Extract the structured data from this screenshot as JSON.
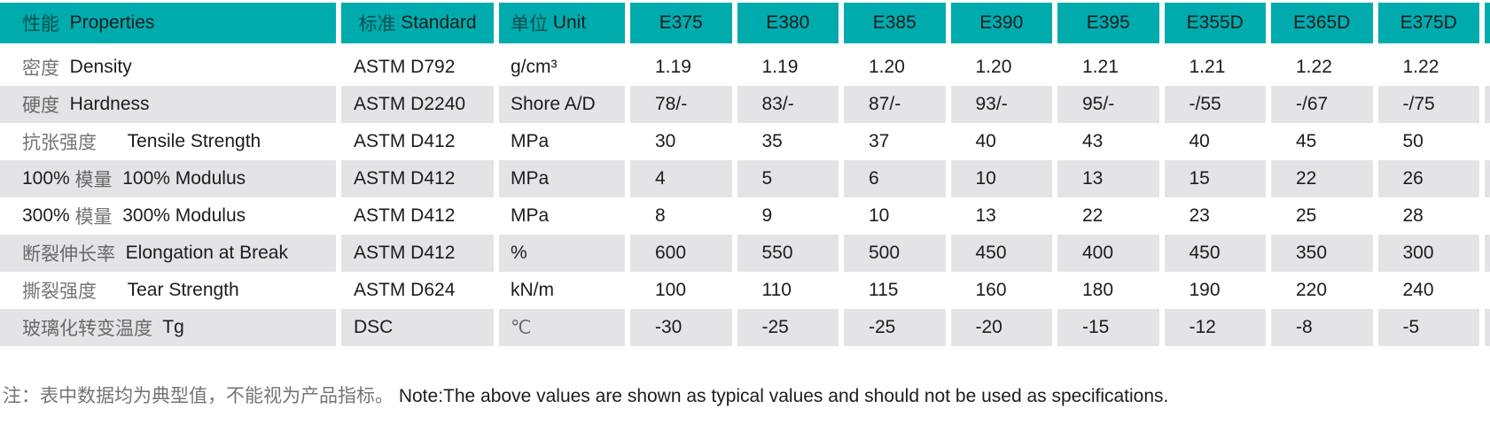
{
  "table": {
    "header": {
      "properties": "性能  Properties",
      "standard": "标准 Standard",
      "unit": "单位 Unit",
      "grades": [
        "E375",
        "E380",
        "E385",
        "E390",
        "E395",
        "E355D",
        "E365D",
        "E375D"
      ]
    },
    "rows": [
      {
        "property": "密度  Density",
        "standard": "ASTM D792",
        "unit": "g/cm³",
        "values": [
          "1.19",
          "1.19",
          "1.20",
          "1.20",
          "1.21",
          "1.21",
          "1.22",
          "1.22"
        ]
      },
      {
        "property": "硬度  Hardness",
        "standard": "ASTM D2240",
        "unit": "Shore A/D",
        "values": [
          "78/-",
          "83/-",
          "87/-",
          "93/-",
          "95/-",
          "-/55",
          "-/67",
          "-/75"
        ]
      },
      {
        "property": "抗张强度      Tensile Strength",
        "standard": "ASTM D412",
        "unit": "MPa",
        "values": [
          "30",
          "35",
          "37",
          "40",
          "43",
          "40",
          "45",
          "50"
        ]
      },
      {
        "property": "100% 模量  100% Modulus",
        "standard": "ASTM D412",
        "unit": "MPa",
        "values": [
          "4",
          "5",
          "6",
          "10",
          "13",
          "15",
          "22",
          "26"
        ]
      },
      {
        "property": "300% 模量  300% Modulus",
        "standard": "ASTM D412",
        "unit": "MPa",
        "values": [
          "8",
          "9",
          "10",
          "13",
          "22",
          "23",
          "25",
          "28"
        ]
      },
      {
        "property": "断裂伸长率  Elongation at Break",
        "standard": "ASTM D412",
        "unit": "%",
        "values": [
          "600",
          "550",
          "500",
          "450",
          "400",
          "450",
          "350",
          "300"
        ]
      },
      {
        "property": "撕裂强度      Tear Strength",
        "standard": "ASTM D624",
        "unit": "kN/m",
        "values": [
          "100",
          "110",
          "115",
          "160",
          "180",
          "190",
          "220",
          "240"
        ]
      },
      {
        "property": "玻璃化转变温度  Tg",
        "standard": "DSC",
        "unit": "℃",
        "values": [
          "-30",
          "-25",
          "-25",
          "-20",
          "-15",
          "-12",
          "-8",
          "-5"
        ]
      }
    ]
  },
  "note": "注：表中数据均为典型值，不能视为产品指标。 Note:The above values are shown as typical values and should not be used as specifications.",
  "colors": {
    "header_bg": "#00ABAD",
    "stripe_bg": "#E4E4E6",
    "text": "#1C1C1E",
    "cjk_text_opacity": "rgba(0,0,0,0.55)"
  }
}
